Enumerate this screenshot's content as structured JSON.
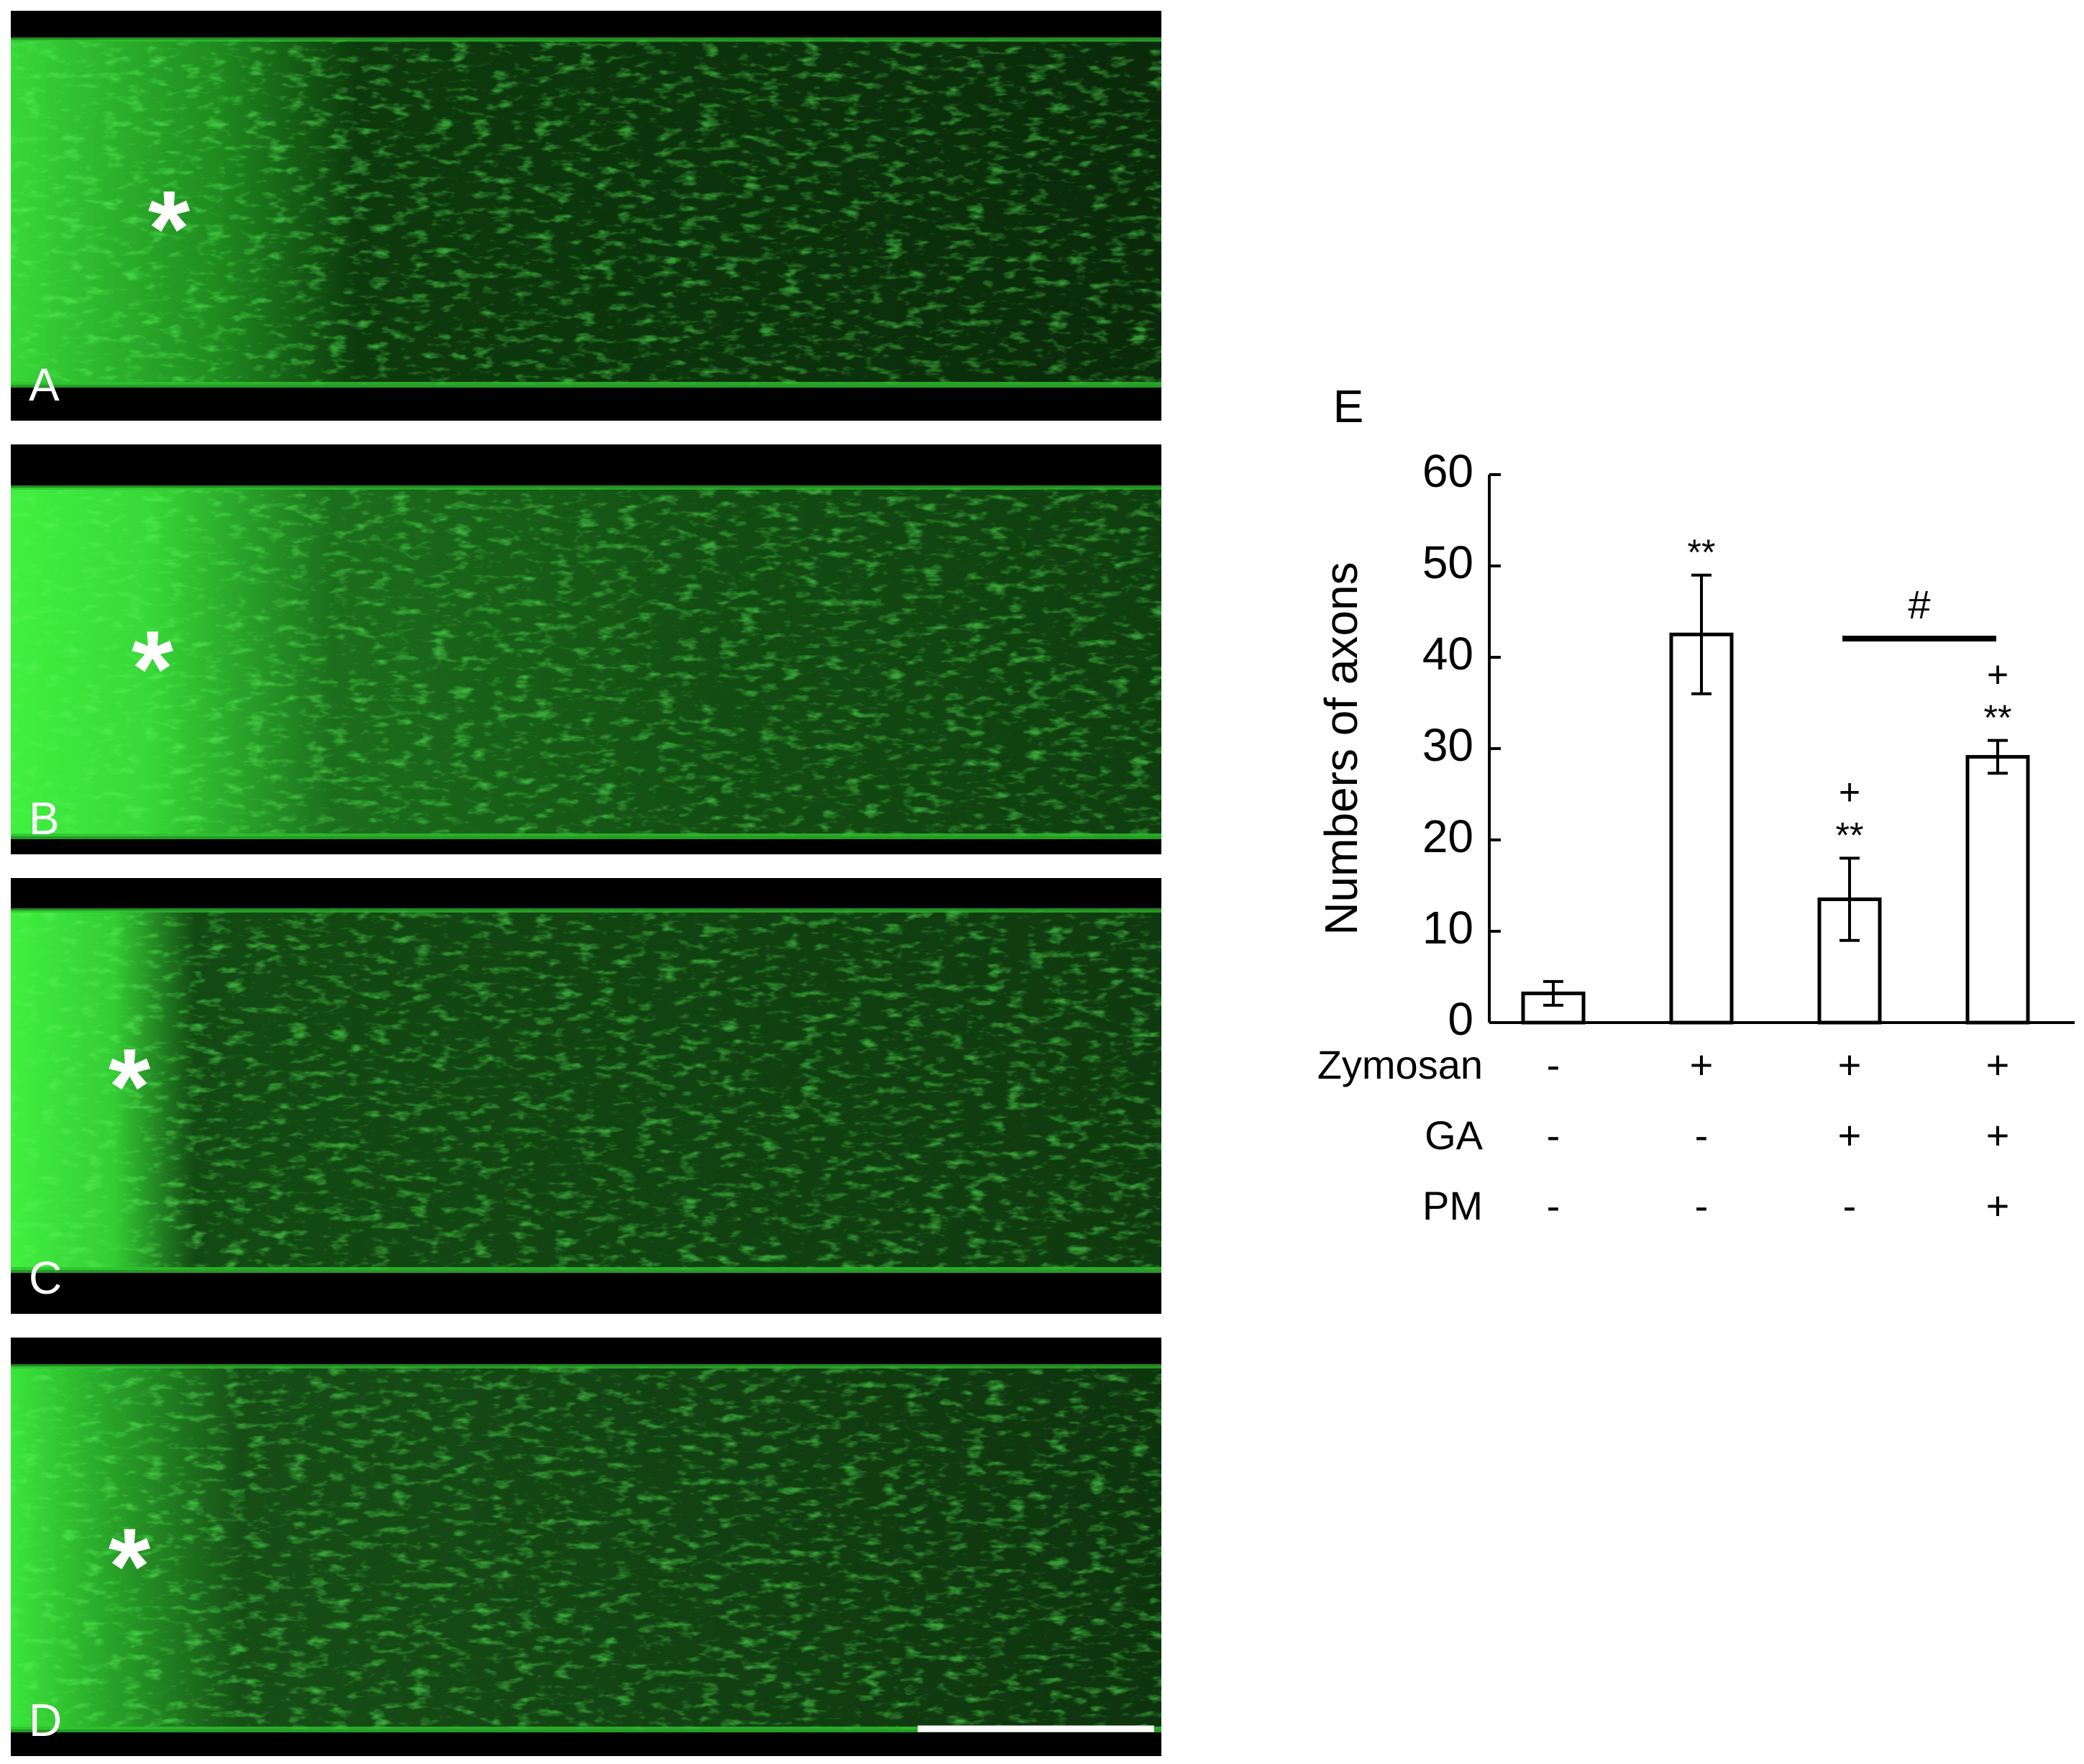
{
  "panels": [
    {
      "label": "A",
      "marker": "*"
    },
    {
      "label": "B",
      "marker": "*"
    },
    {
      "label": "C",
      "marker": "*"
    },
    {
      "label": "D",
      "marker": "*"
    }
  ],
  "chart_data": {
    "type": "bar",
    "panel_label": "E",
    "y_label": "Numbers of axons",
    "values": [
      3.2,
      42.5,
      13.5,
      29.1
    ],
    "errors": [
      1.3,
      6.5,
      4.5,
      1.8
    ],
    "color": "#ffffff",
    "ylim": [
      0,
      60
    ],
    "yticks": [
      0,
      10,
      20,
      30,
      40,
      50,
      60
    ],
    "significance": [
      null,
      "**",
      "**",
      "**"
    ],
    "versus_marks": [
      null,
      null,
      "+",
      "+"
    ],
    "bracket_label": "#",
    "conditions": [
      {
        "name": "Zymosan",
        "values": [
          "-",
          "+",
          "+",
          "+"
        ]
      },
      {
        "name": "GA",
        "values": [
          "-",
          "-",
          "+",
          "+"
        ]
      },
      {
        "name": "PM",
        "values": [
          "-",
          "-",
          "-",
          "+"
        ]
      }
    ]
  }
}
